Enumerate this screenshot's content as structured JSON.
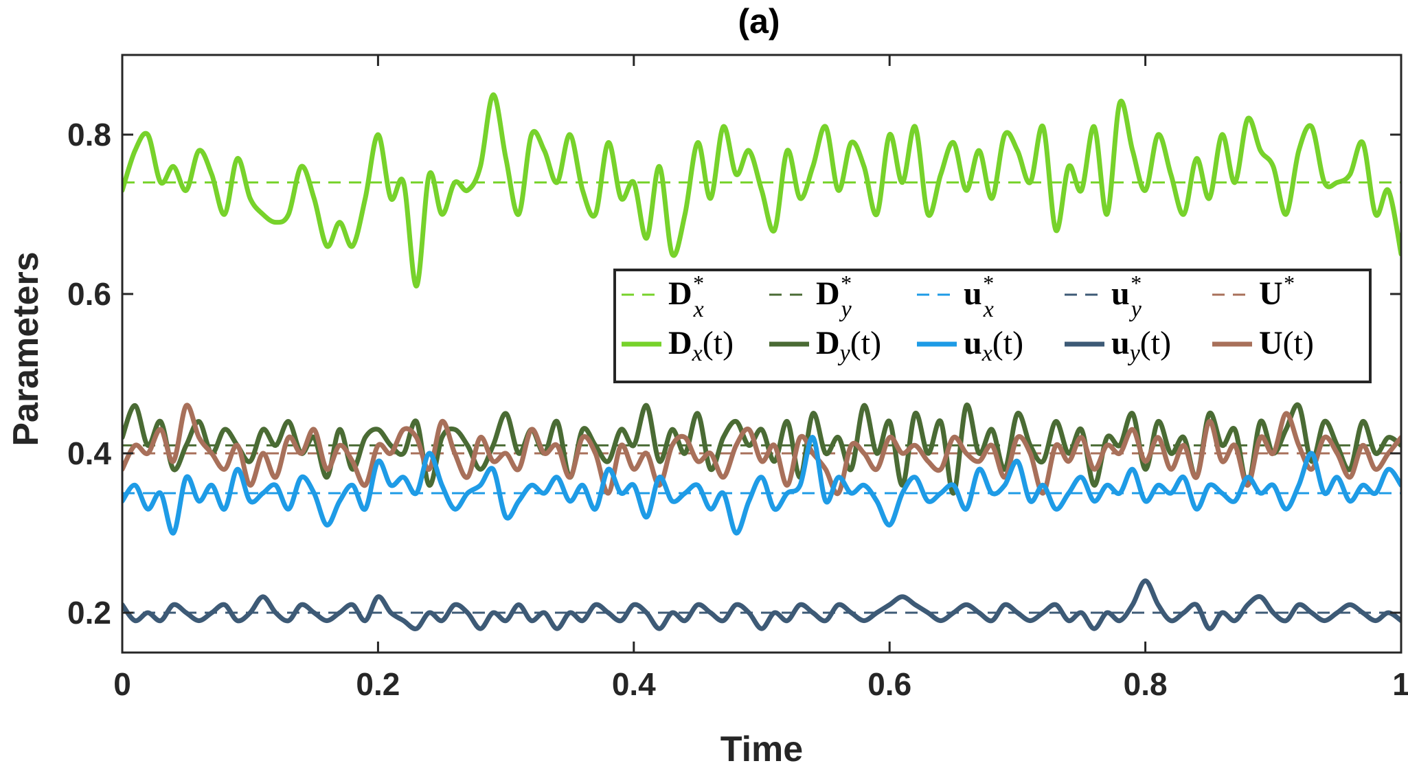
{
  "chart_data": {
    "type": "line",
    "title": "(a)",
    "xlabel": "Time",
    "ylabel": "Parameters",
    "xlim": [
      0,
      1
    ],
    "ylim": [
      0.15,
      0.9
    ],
    "xticks": [
      0,
      0.2,
      0.4,
      0.6,
      0.8,
      1
    ],
    "xtick_labels": [
      "0",
      "0.2",
      "0.4",
      "0.6",
      "0.8",
      "1"
    ],
    "yticks": [
      0.2,
      0.4,
      0.6,
      0.8
    ],
    "ytick_labels": [
      "0.2",
      "0.4",
      "0.6",
      "0.8"
    ],
    "grid": false,
    "legend_position": "upper-right",
    "reference_lines": [
      {
        "name": "Dx*",
        "value": 0.74,
        "color": "#77d22b",
        "style": "dashed"
      },
      {
        "name": "Dy*",
        "value": 0.41,
        "color": "#4a6b34",
        "style": "dashed"
      },
      {
        "name": "ux*",
        "value": 0.35,
        "color": "#1e9be6",
        "style": "dashed"
      },
      {
        "name": "uy*",
        "value": 0.2,
        "color": "#3d5a76",
        "style": "dashed"
      },
      {
        "name": "U*",
        "value": 0.4,
        "color": "#a8705a",
        "style": "dashed"
      }
    ],
    "series": [
      {
        "name": "Dx(t)",
        "color": "#77d22b",
        "mean": 0.74,
        "x_step": 0.01,
        "values": [
          0.73,
          0.78,
          0.8,
          0.74,
          0.76,
          0.73,
          0.78,
          0.75,
          0.7,
          0.77,
          0.72,
          0.7,
          0.69,
          0.7,
          0.76,
          0.72,
          0.66,
          0.69,
          0.66,
          0.72,
          0.8,
          0.72,
          0.74,
          0.61,
          0.75,
          0.7,
          0.74,
          0.73,
          0.76,
          0.85,
          0.77,
          0.7,
          0.8,
          0.78,
          0.74,
          0.8,
          0.73,
          0.7,
          0.79,
          0.72,
          0.74,
          0.67,
          0.76,
          0.65,
          0.7,
          0.79,
          0.72,
          0.81,
          0.75,
          0.78,
          0.73,
          0.68,
          0.78,
          0.72,
          0.76,
          0.81,
          0.73,
          0.79,
          0.76,
          0.7,
          0.8,
          0.74,
          0.81,
          0.7,
          0.75,
          0.79,
          0.73,
          0.78,
          0.72,
          0.8,
          0.78,
          0.74,
          0.81,
          0.68,
          0.76,
          0.73,
          0.81,
          0.7,
          0.84,
          0.78,
          0.73,
          0.8,
          0.75,
          0.7,
          0.77,
          0.72,
          0.8,
          0.74,
          0.82,
          0.78,
          0.76,
          0.7,
          0.78,
          0.81,
          0.74,
          0.74,
          0.75,
          0.79,
          0.7,
          0.73,
          0.65
        ]
      },
      {
        "name": "Dy(t)",
        "color": "#4a6b34",
        "mean": 0.41,
        "x_step": 0.01,
        "values": [
          0.42,
          0.46,
          0.41,
          0.44,
          0.38,
          0.41,
          0.44,
          0.4,
          0.43,
          0.41,
          0.39,
          0.43,
          0.41,
          0.44,
          0.4,
          0.42,
          0.37,
          0.43,
          0.38,
          0.42,
          0.43,
          0.41,
          0.4,
          0.44,
          0.36,
          0.42,
          0.43,
          0.41,
          0.38,
          0.41,
          0.45,
          0.4,
          0.43,
          0.4,
          0.44,
          0.37,
          0.43,
          0.41,
          0.39,
          0.43,
          0.41,
          0.46,
          0.39,
          0.43,
          0.4,
          0.45,
          0.38,
          0.42,
          0.44,
          0.41,
          0.43,
          0.39,
          0.44,
          0.37,
          0.45,
          0.4,
          0.42,
          0.38,
          0.46,
          0.4,
          0.44,
          0.36,
          0.45,
          0.4,
          0.44,
          0.35,
          0.46,
          0.4,
          0.43,
          0.38,
          0.45,
          0.41,
          0.39,
          0.44,
          0.4,
          0.43,
          0.36,
          0.42,
          0.41,
          0.45,
          0.38,
          0.44,
          0.4,
          0.42,
          0.37,
          0.45,
          0.41,
          0.43,
          0.36,
          0.44,
          0.4,
          0.43,
          0.46,
          0.39,
          0.44,
          0.41,
          0.38,
          0.44,
          0.4,
          0.42,
          0.41
        ]
      },
      {
        "name": "ux(t)",
        "color": "#1e9be6",
        "mean": 0.35,
        "x_step": 0.01,
        "values": [
          0.34,
          0.36,
          0.33,
          0.35,
          0.3,
          0.37,
          0.34,
          0.36,
          0.33,
          0.38,
          0.34,
          0.35,
          0.36,
          0.33,
          0.37,
          0.35,
          0.31,
          0.34,
          0.36,
          0.33,
          0.39,
          0.36,
          0.37,
          0.35,
          0.4,
          0.36,
          0.33,
          0.35,
          0.36,
          0.38,
          0.32,
          0.34,
          0.36,
          0.35,
          0.37,
          0.34,
          0.36,
          0.33,
          0.38,
          0.35,
          0.36,
          0.32,
          0.37,
          0.34,
          0.35,
          0.36,
          0.33,
          0.35,
          0.3,
          0.34,
          0.37,
          0.33,
          0.35,
          0.36,
          0.42,
          0.34,
          0.37,
          0.35,
          0.36,
          0.34,
          0.31,
          0.35,
          0.37,
          0.34,
          0.35,
          0.36,
          0.33,
          0.38,
          0.35,
          0.36,
          0.39,
          0.34,
          0.36,
          0.33,
          0.35,
          0.37,
          0.34,
          0.36,
          0.35,
          0.38,
          0.34,
          0.36,
          0.35,
          0.37,
          0.33,
          0.36,
          0.35,
          0.34,
          0.37,
          0.35,
          0.36,
          0.33,
          0.36,
          0.4,
          0.35,
          0.37,
          0.34,
          0.36,
          0.35,
          0.38,
          0.36
        ]
      },
      {
        "name": "uy(t)",
        "color": "#3d5a76",
        "mean": 0.2,
        "x_step": 0.01,
        "values": [
          0.21,
          0.19,
          0.2,
          0.19,
          0.21,
          0.2,
          0.19,
          0.2,
          0.21,
          0.19,
          0.2,
          0.22,
          0.2,
          0.19,
          0.21,
          0.2,
          0.19,
          0.2,
          0.21,
          0.19,
          0.22,
          0.2,
          0.19,
          0.18,
          0.2,
          0.19,
          0.21,
          0.2,
          0.18,
          0.2,
          0.19,
          0.21,
          0.19,
          0.2,
          0.18,
          0.2,
          0.19,
          0.21,
          0.2,
          0.19,
          0.21,
          0.2,
          0.18,
          0.2,
          0.19,
          0.21,
          0.2,
          0.19,
          0.21,
          0.2,
          0.18,
          0.2,
          0.19,
          0.21,
          0.2,
          0.19,
          0.21,
          0.2,
          0.19,
          0.2,
          0.21,
          0.22,
          0.21,
          0.2,
          0.19,
          0.2,
          0.21,
          0.2,
          0.19,
          0.21,
          0.2,
          0.19,
          0.2,
          0.21,
          0.19,
          0.2,
          0.18,
          0.2,
          0.19,
          0.21,
          0.24,
          0.21,
          0.19,
          0.2,
          0.21,
          0.18,
          0.2,
          0.19,
          0.21,
          0.22,
          0.2,
          0.19,
          0.21,
          0.2,
          0.19,
          0.2,
          0.21,
          0.2,
          0.19,
          0.2,
          0.19
        ]
      },
      {
        "name": "U(t)",
        "color": "#a8705a",
        "mean": 0.4,
        "x_step": 0.01,
        "values": [
          0.38,
          0.41,
          0.4,
          0.43,
          0.39,
          0.46,
          0.42,
          0.4,
          0.38,
          0.41,
          0.36,
          0.4,
          0.37,
          0.42,
          0.4,
          0.43,
          0.38,
          0.41,
          0.39,
          0.36,
          0.41,
          0.4,
          0.43,
          0.42,
          0.38,
          0.44,
          0.4,
          0.37,
          0.42,
          0.39,
          0.4,
          0.38,
          0.43,
          0.4,
          0.41,
          0.37,
          0.42,
          0.4,
          0.35,
          0.41,
          0.38,
          0.4,
          0.36,
          0.41,
          0.42,
          0.39,
          0.4,
          0.37,
          0.41,
          0.43,
          0.39,
          0.41,
          0.36,
          0.42,
          0.4,
          0.38,
          0.35,
          0.41,
          0.4,
          0.38,
          0.42,
          0.4,
          0.41,
          0.39,
          0.38,
          0.42,
          0.4,
          0.39,
          0.41,
          0.37,
          0.42,
          0.4,
          0.35,
          0.41,
          0.39,
          0.42,
          0.38,
          0.41,
          0.4,
          0.43,
          0.39,
          0.42,
          0.38,
          0.41,
          0.37,
          0.44,
          0.39,
          0.41,
          0.36,
          0.42,
          0.4,
          0.45,
          0.41,
          0.38,
          0.42,
          0.4,
          0.37,
          0.41,
          0.38,
          0.4,
          0.42
        ]
      }
    ]
  },
  "legend": {
    "row1": [
      {
        "sym": "D",
        "sub": "x",
        "sup": "*",
        "color": "#77d22b"
      },
      {
        "sym": "D",
        "sub": "y",
        "sup": "*",
        "color": "#4a6b34"
      },
      {
        "sym": "u",
        "sub": "x",
        "sup": "*",
        "color": "#1e9be6"
      },
      {
        "sym": "u",
        "sub": "y",
        "sup": "*",
        "color": "#3d5a76"
      },
      {
        "sym": "U",
        "sub": "",
        "sup": "*",
        "color": "#a8705a"
      }
    ],
    "row2": [
      {
        "sym": "D",
        "sub": "x",
        "arg": "(t)",
        "color": "#77d22b"
      },
      {
        "sym": "D",
        "sub": "y",
        "arg": "(t)",
        "color": "#4a6b34"
      },
      {
        "sym": "u",
        "sub": "x",
        "arg": "(t)",
        "color": "#1e9be6"
      },
      {
        "sym": "u",
        "sub": "y",
        "arg": "(t)",
        "color": "#3d5a76"
      },
      {
        "sym": "U",
        "sub": "",
        "arg": "(t)",
        "color": "#a8705a"
      }
    ]
  }
}
